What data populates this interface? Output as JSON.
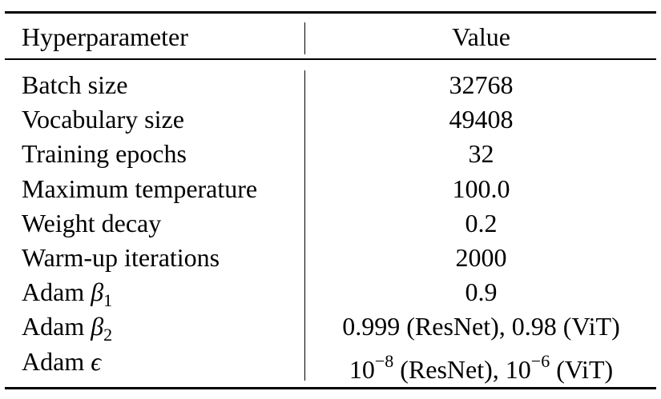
{
  "table": {
    "headers": {
      "name": "Hyperparameter",
      "value": "Value"
    },
    "rows": [
      {
        "name": "Batch size",
        "value": "32768"
      },
      {
        "name": "Vocabulary size",
        "value": "49408"
      },
      {
        "name": "Training epochs",
        "value": "32"
      },
      {
        "name": "Maximum temperature",
        "value": "100.0"
      },
      {
        "name": "Weight decay",
        "value": "0.2"
      },
      {
        "name": "Warm-up iterations",
        "value": "2000"
      },
      {
        "name_prefix": "Adam ",
        "symbol": "β",
        "symbol_sub": "1",
        "value": "0.9"
      },
      {
        "name_prefix": "Adam ",
        "symbol": "β",
        "symbol_sub": "2",
        "value": "0.999 (ResNet), 0.98 (ViT)"
      },
      {
        "name_prefix": "Adam ",
        "symbol": "ϵ",
        "value_parts": {
          "a_base": "10",
          "a_exp": "−8",
          "a_label": " (ResNet), ",
          "b_base": "10",
          "b_exp": "−6",
          "b_label": " (ViT)"
        }
      }
    ]
  }
}
